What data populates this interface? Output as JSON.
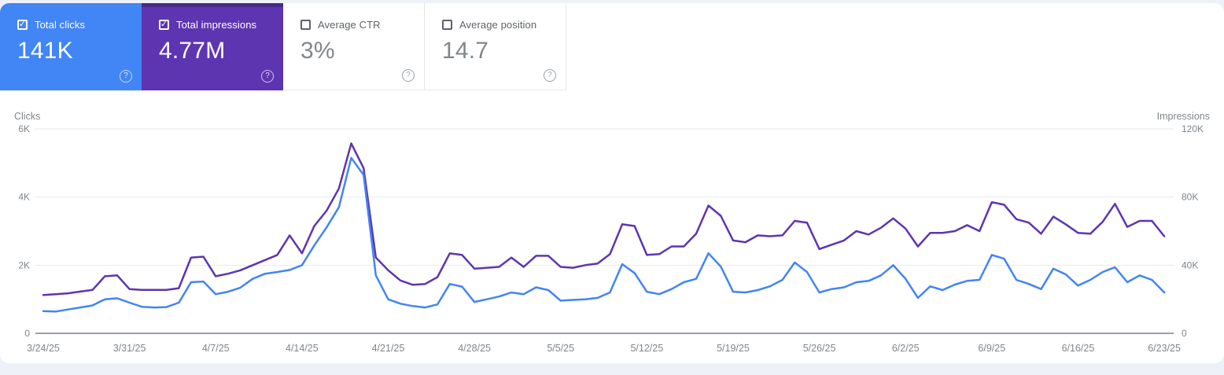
{
  "cards": [
    {
      "label": "Total clicks",
      "value": "141K",
      "checked": true,
      "style": "colored",
      "bg": "#4285f4"
    },
    {
      "label": "Total impressions",
      "value": "4.77M",
      "checked": true,
      "style": "colored",
      "bg": "#5e35b1"
    },
    {
      "label": "Average CTR",
      "value": "3%",
      "checked": false,
      "style": "white",
      "bg": "#ffffff"
    },
    {
      "label": "Average position",
      "value": "14.7",
      "checked": false,
      "style": "white",
      "bg": "#ffffff"
    }
  ],
  "help_icon_glyph": "?",
  "colors": {
    "clicks_accent": "#4285f4",
    "impressions_accent": "#5e35b1",
    "grid": "#e8eaed",
    "axis_line": "#9aa0a6",
    "tick_text": "#80868b"
  },
  "chart_data": {
    "type": "line",
    "title": "",
    "x_tick_labels": [
      "3/24/25",
      "3/31/25",
      "4/7/25",
      "4/14/25",
      "4/21/25",
      "4/28/25",
      "5/5/25",
      "5/12/25",
      "5/19/25",
      "5/26/25",
      "6/2/25",
      "6/9/25",
      "6/16/25",
      "6/23/25"
    ],
    "x_tick_every_days": 7,
    "left_axis": {
      "title": "Clicks",
      "tick_labels": [
        "0",
        "2K",
        "4K",
        "6K"
      ],
      "tick_values": [
        0,
        2000,
        4000,
        6000
      ],
      "max": 6000
    },
    "right_axis": {
      "title": "Impressions",
      "tick_labels": [
        "0",
        "40K",
        "80K",
        "120K"
      ],
      "tick_values": [
        0,
        40000,
        80000,
        120000
      ],
      "max": 120000
    },
    "grid": true,
    "legend_position": "none",
    "series": [
      {
        "name": "Total clicks",
        "axis": "left",
        "color": "#4285f4",
        "values": [
          650,
          640,
          700,
          760,
          820,
          1000,
          1030,
          900,
          780,
          760,
          770,
          900,
          1500,
          1520,
          1150,
          1220,
          1340,
          1600,
          1750,
          1800,
          1860,
          2000,
          2580,
          3110,
          3700,
          5150,
          4650,
          1700,
          1000,
          870,
          800,
          760,
          850,
          1450,
          1370,
          920,
          1000,
          1080,
          1200,
          1150,
          1350,
          1270,
          960,
          980,
          1000,
          1040,
          1200,
          2030,
          1770,
          1220,
          1150,
          1300,
          1500,
          1600,
          2350,
          1960,
          1220,
          1200,
          1270,
          1380,
          1570,
          2080,
          1800,
          1200,
          1300,
          1350,
          1500,
          1540,
          1700,
          2000,
          1600,
          1040,
          1380,
          1270,
          1430,
          1540,
          1570,
          2300,
          2190,
          1570,
          1450,
          1300,
          1900,
          1730,
          1400,
          1570,
          1800,
          1940,
          1500,
          1700,
          1570,
          1200
        ]
      },
      {
        "name": "Total impressions",
        "axis": "right",
        "color": "#5e35b1",
        "values": [
          22500,
          23000,
          23500,
          24500,
          25500,
          33500,
          34000,
          26000,
          25500,
          25500,
          25500,
          26500,
          44500,
          45000,
          33500,
          35000,
          37000,
          40000,
          43000,
          46000,
          57500,
          47000,
          63000,
          72000,
          85000,
          111500,
          97000,
          44500,
          37000,
          31000,
          28500,
          29000,
          33000,
          47000,
          46000,
          38000,
          38500,
          39000,
          44500,
          39000,
          45500,
          45500,
          39000,
          38500,
          40000,
          41000,
          46500,
          64000,
          63000,
          46000,
          46500,
          51000,
          51000,
          58500,
          75000,
          69000,
          54500,
          53500,
          57500,
          57000,
          57500,
          66000,
          65000,
          49500,
          52000,
          54500,
          60000,
          58000,
          62000,
          67500,
          61500,
          51000,
          59000,
          59000,
          60000,
          63500,
          60000,
          77000,
          75500,
          67000,
          65000,
          58500,
          68500,
          64000,
          59000,
          58500,
          65500,
          76000,
          62500,
          66000,
          66000,
          57000
        ]
      }
    ]
  }
}
